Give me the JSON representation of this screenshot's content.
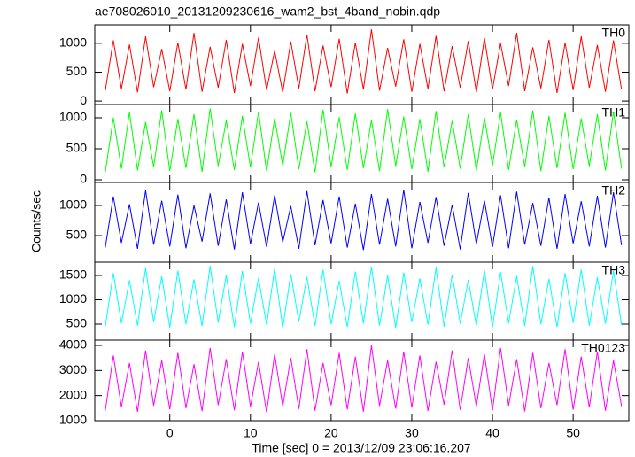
{
  "chart_data": [
    {
      "type": "line",
      "title": "ae708026010_20131209230616_wam2_bst_4band_nobin.qdp",
      "label": "TH0",
      "color": "#ff0000",
      "xlim": [
        -9.3,
        56.9
      ],
      "ylim": [
        -60,
        1320
      ],
      "yticks": [
        0,
        500,
        1000
      ],
      "x": [
        -8,
        -7,
        -6,
        -5,
        -4,
        -3,
        -2,
        -1,
        0,
        1,
        2,
        3,
        4,
        5,
        6,
        7,
        8,
        9,
        10,
        11,
        12,
        13,
        14,
        15,
        16,
        17,
        18,
        19,
        20,
        21,
        22,
        23,
        24,
        25,
        26,
        27,
        28,
        29,
        30,
        31,
        32,
        33,
        34,
        35,
        36,
        37,
        38,
        39,
        40,
        41,
        42,
        43,
        44,
        45,
        46,
        47,
        48,
        49,
        50,
        51,
        52,
        53,
        54,
        55,
        56
      ],
      "values": [
        180,
        1050,
        210,
        980,
        150,
        1120,
        240,
        900,
        170,
        1010,
        200,
        1180,
        160,
        940,
        230,
        1060,
        140,
        990,
        260,
        1100,
        190,
        870,
        150,
        1030,
        220,
        1150,
        170,
        960,
        240,
        1080,
        130,
        1010,
        200,
        1240,
        180,
        920,
        250,
        1070,
        160,
        990,
        210,
        1130,
        170,
        950,
        230,
        1040,
        150,
        1090,
        200,
        1000,
        260,
        1180,
        170,
        930,
        220,
        1060,
        140,
        1010,
        190,
        1120,
        230,
        970,
        160,
        1050,
        200
      ]
    },
    {
      "type": "line",
      "label": "TH1",
      "color": "#00ff00",
      "xlim": [
        -9.3,
        56.9
      ],
      "ylim": [
        -43,
        1214
      ],
      "yticks": [
        0,
        500,
        1000
      ],
      "x": [
        -8,
        -7,
        -6,
        -5,
        -4,
        -3,
        -2,
        -1,
        0,
        1,
        2,
        3,
        4,
        5,
        6,
        7,
        8,
        9,
        10,
        11,
        12,
        13,
        14,
        15,
        16,
        17,
        18,
        19,
        20,
        21,
        22,
        23,
        24,
        25,
        26,
        27,
        28,
        29,
        30,
        31,
        32,
        33,
        34,
        35,
        36,
        37,
        38,
        39,
        40,
        41,
        42,
        43,
        44,
        45,
        46,
        47,
        48,
        49,
        50,
        51,
        52,
        53,
        54,
        55,
        56
      ],
      "values": [
        120,
        1000,
        180,
        1090,
        150,
        930,
        210,
        1120,
        140,
        980,
        190,
        1060,
        130,
        1150,
        220,
        960,
        160,
        1030,
        200,
        1100,
        140,
        990,
        230,
        1080,
        170,
        940,
        120,
        1130,
        210,
        1010,
        160,
        1070,
        190,
        960,
        140,
        1140,
        220,
        1020,
        170,
        980,
        130,
        1110,
        200,
        950,
        180,
        1060,
        150,
        1000,
        230,
        1090,
        160,
        970,
        210,
        1120,
        140,
        1030,
        190,
        1080,
        170,
        990,
        220,
        1060,
        150,
        1100,
        180
      ]
    },
    {
      "type": "line",
      "label": "TH2",
      "color": "#0000ff",
      "ylabel": "Counts/sec",
      "xlim": [
        -9.3,
        56.9
      ],
      "ylim": [
        59,
        1382
      ],
      "yticks": [
        500,
        1000
      ],
      "x": [
        -8,
        -7,
        -6,
        -5,
        -4,
        -3,
        -2,
        -1,
        0,
        1,
        2,
        3,
        4,
        5,
        6,
        7,
        8,
        9,
        10,
        11,
        12,
        13,
        14,
        15,
        16,
        17,
        18,
        19,
        20,
        21,
        22,
        23,
        24,
        25,
        26,
        27,
        28,
        29,
        30,
        31,
        32,
        33,
        34,
        35,
        36,
        37,
        38,
        39,
        40,
        41,
        42,
        43,
        44,
        45,
        46,
        47,
        48,
        49,
        50,
        51,
        52,
        53,
        54,
        55,
        56
      ],
      "values": [
        300,
        1150,
        380,
        1020,
        280,
        1250,
        350,
        1080,
        320,
        1180,
        290,
        1000,
        400,
        1200,
        330,
        1100,
        270,
        1220,
        360,
        1050,
        310,
        1170,
        390,
        990,
        280,
        1240,
        340,
        1090,
        370,
        1150,
        300,
        1030,
        260,
        1190,
        350,
        1110,
        320,
        1260,
        290,
        1060,
        380,
        1140,
        330,
        1010,
        270,
        1210,
        360,
        1080,
        310,
        1170,
        290,
        1230,
        350,
        1040,
        330,
        1130,
        280,
        1190,
        370,
        1070,
        320,
        1160,
        300,
        1220,
        340
      ]
    },
    {
      "type": "line",
      "label": "TH3",
      "color": "#00ffff",
      "xlim": [
        -9.3,
        56.9
      ],
      "ylim": [
        173,
        1773
      ],
      "yticks": [
        500,
        1000,
        1500
      ],
      "x": [
        -8,
        -7,
        -6,
        -5,
        -4,
        -3,
        -2,
        -1,
        0,
        1,
        2,
        3,
        4,
        5,
        6,
        7,
        8,
        9,
        10,
        11,
        12,
        13,
        14,
        15,
        16,
        17,
        18,
        19,
        20,
        21,
        22,
        23,
        24,
        25,
        26,
        27,
        28,
        29,
        30,
        31,
        32,
        33,
        34,
        35,
        36,
        37,
        38,
        39,
        40,
        41,
        42,
        43,
        44,
        45,
        46,
        47,
        48,
        49,
        50,
        51,
        52,
        53,
        54,
        55,
        56
      ],
      "values": [
        450,
        1550,
        520,
        1400,
        470,
        1650,
        540,
        1480,
        430,
        1600,
        500,
        1420,
        460,
        1700,
        530,
        1510,
        440,
        1590,
        510,
        1450,
        480,
        1640,
        420,
        1530,
        550,
        1470,
        460,
        1620,
        500,
        1390,
        440,
        1580,
        520,
        1680,
        470,
        1500,
        430,
        1560,
        540,
        1440,
        490,
        1660,
        450,
        1520,
        510,
        1410,
        470,
        1610,
        430,
        1570,
        520,
        1490,
        460,
        1690,
        500,
        1430,
        440,
        1550,
        530,
        1620,
        470,
        1460,
        510,
        1600,
        480
      ]
    },
    {
      "type": "line",
      "label": "TH0123",
      "color": "#ff00ff",
      "xlabel": "Time [sec] 0 = 2013/12/09 23:06:16.207",
      "xlim": [
        -9.3,
        56.9
      ],
      "xticks": [
        0,
        10,
        20,
        30,
        40,
        50
      ],
      "ylim": [
        1000,
        4212
      ],
      "yticks": [
        1000,
        2000,
        3000,
        4000
      ],
      "x": [
        -8,
        -7,
        -6,
        -5,
        -4,
        -3,
        -2,
        -1,
        0,
        1,
        2,
        3,
        4,
        5,
        6,
        7,
        8,
        9,
        10,
        11,
        12,
        13,
        14,
        15,
        16,
        17,
        18,
        19,
        20,
        21,
        22,
        23,
        24,
        25,
        26,
        27,
        28,
        29,
        30,
        31,
        32,
        33,
        34,
        35,
        36,
        37,
        38,
        39,
        40,
        41,
        42,
        43,
        44,
        45,
        46,
        47,
        48,
        49,
        50,
        51,
        52,
        53,
        54,
        55,
        56
      ],
      "values": [
        1400,
        3600,
        1550,
        3300,
        1350,
        3800,
        1600,
        3400,
        1450,
        3700,
        1500,
        3250,
        1380,
        3900,
        1620,
        3450,
        1420,
        3750,
        1560,
        3350,
        1330,
        3650,
        1580,
        3500,
        1470,
        3850,
        1400,
        3300,
        1610,
        3700,
        1450,
        3550,
        1360,
        4000,
        1590,
        3400,
        1480,
        3750,
        1520,
        3600,
        1390,
        3350,
        1640,
        3800,
        1430,
        3500,
        1570,
        3650,
        1410,
        3900,
        1600,
        3450,
        1370,
        3700,
        1500,
        3300,
        1620,
        3850,
        1440,
        3550,
        1530,
        3750,
        1400,
        3400,
        1580
      ]
    }
  ]
}
